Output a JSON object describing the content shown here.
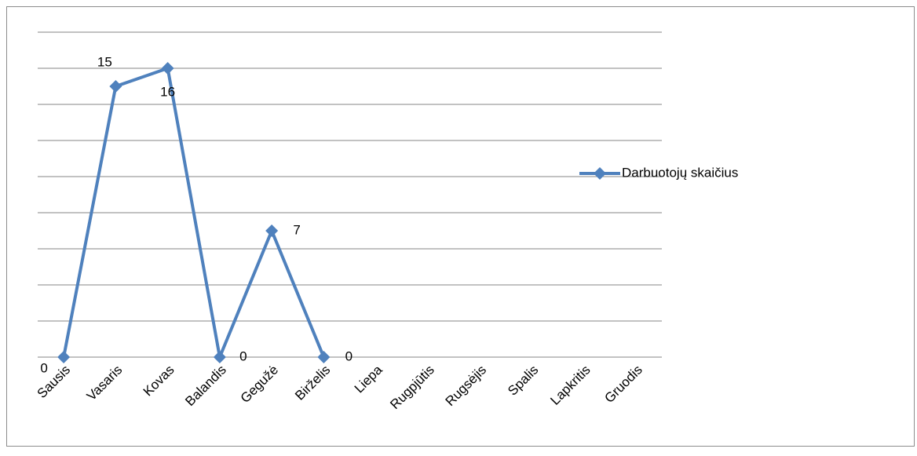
{
  "chart_data": {
    "type": "line",
    "categories": [
      "Sausis",
      "Vasaris",
      "Kovas",
      "Balandis",
      "Gegužė",
      "Birželis",
      "Liepa",
      "Rugpjūtis",
      "Rugsėjis",
      "Spalis",
      "Lapkritis",
      "Gruodis"
    ],
    "series": [
      {
        "name": "Darbuotojų skaičius",
        "color": "#4f81bd",
        "values": [
          0,
          15,
          16,
          0,
          7,
          0,
          null,
          null,
          null,
          null,
          null,
          null
        ]
      }
    ],
    "ylim": [
      0,
      18
    ],
    "yticks": [
      0,
      2,
      4,
      6,
      8,
      10,
      12,
      14,
      16,
      18
    ],
    "grid": true,
    "legend": "right"
  }
}
